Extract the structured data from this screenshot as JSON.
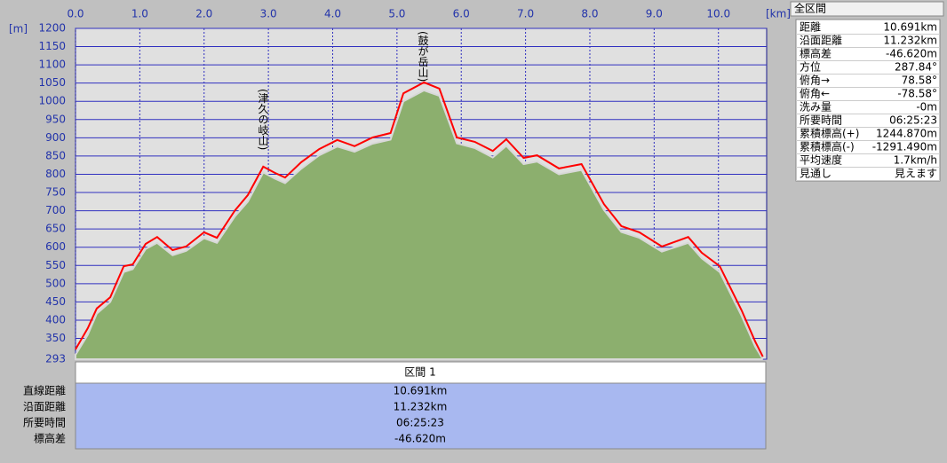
{
  "chart_data": {
    "type": "area",
    "x_label": "[km]",
    "y_label": "[m]",
    "annotations": [
      "(津久の岐山)",
      "(鼓が岳山)"
    ],
    "xlim": [
      0,
      10.75
    ],
    "ylim": [
      293,
      1200
    ],
    "xticks": [
      {
        "value": 0,
        "label": "0.0"
      },
      {
        "value": 1,
        "label": "1.0"
      },
      {
        "value": 2,
        "label": "2.0"
      },
      {
        "value": 3,
        "label": "3.0"
      },
      {
        "value": 4,
        "label": "4.0"
      },
      {
        "value": 5,
        "label": "5.0"
      },
      {
        "value": 6,
        "label": "6.0"
      },
      {
        "value": 7,
        "label": "7.0"
      },
      {
        "value": 8,
        "label": "8.0"
      },
      {
        "value": 9,
        "label": "9.0"
      },
      {
        "value": 10,
        "label": "10.0"
      }
    ],
    "yticks": [
      293,
      350,
      400,
      450,
      500,
      550,
      600,
      650,
      700,
      750,
      800,
      850,
      900,
      950,
      1000,
      1050,
      1100,
      1150,
      1200
    ],
    "grid": true,
    "series": [
      {
        "name": "track",
        "color": "#ff0000",
        "x": [
          0,
          0.19,
          0.33,
          0.54,
          0.75,
          0.89,
          1.09,
          1.27,
          1.51,
          1.72,
          2.0,
          2.2,
          2.48,
          2.68,
          2.92,
          3.1,
          3.26,
          3.51,
          3.79,
          4.07,
          4.34,
          4.62,
          4.9,
          5.1,
          5.42,
          5.66,
          5.93,
          6.21,
          6.49,
          6.7,
          6.97,
          7.18,
          7.52,
          7.87,
          8.22,
          8.49,
          8.77,
          9.12,
          9.53,
          9.74,
          10.02,
          10.36,
          10.57,
          10.691
        ],
        "values": [
          320,
          378,
          432,
          463,
          548,
          553,
          609,
          628,
          592,
          602,
          641,
          626,
          701,
          743,
          821,
          804,
          791,
          833,
          869,
          894,
          877,
          901,
          913,
          1022,
          1052,
          1035,
          901,
          889,
          864,
          896,
          845,
          852,
          816,
          828,
          718,
          658,
          641,
          602,
          628,
          585,
          548,
          427,
          342,
          300
        ]
      },
      {
        "name": "terrain",
        "color": "#8caf6e",
        "x": [
          0,
          0.19,
          0.33,
          0.54,
          0.75,
          0.89,
          1.09,
          1.27,
          1.51,
          1.72,
          2.0,
          2.2,
          2.48,
          2.68,
          2.92,
          3.1,
          3.26,
          3.51,
          3.79,
          4.07,
          4.34,
          4.62,
          4.9,
          5.1,
          5.42,
          5.66,
          5.93,
          6.21,
          6.49,
          6.7,
          6.97,
          7.18,
          7.52,
          7.87,
          8.22,
          8.49,
          8.77,
          9.12,
          9.53,
          9.74,
          10.02,
          10.36,
          10.57,
          10.691
        ],
        "values": [
          305,
          360,
          418,
          450,
          532,
          540,
          595,
          612,
          578,
          590,
          625,
          612,
          685,
          725,
          805,
          788,
          776,
          815,
          852,
          876,
          862,
          884,
          895,
          1000,
          1030,
          1015,
          885,
          872,
          846,
          878,
          828,
          835,
          800,
          812,
          702,
          642,
          626,
          588,
          612,
          570,
          532,
          412,
          328,
          293
        ]
      }
    ]
  },
  "section_table": {
    "title": "区間 1",
    "rows": [
      [
        "直線距離",
        "10.691km"
      ],
      [
        "沿面距離",
        "11.232km"
      ],
      [
        "所要時間",
        "06:25:23"
      ],
      [
        "標高差",
        "-46.620m"
      ]
    ]
  },
  "summary_panel": {
    "title": "全区間",
    "rows": [
      [
        "距離",
        "10.691km"
      ],
      [
        "沿面距離",
        "11.232km"
      ],
      [
        "標高差",
        "-46.620m"
      ],
      [
        "方位",
        "287.84°"
      ],
      [
        "俯角→",
        "78.58°"
      ],
      [
        "俯角←",
        "-78.58°"
      ],
      [
        "洗み量",
        "-0m"
      ],
      [
        "所要時間",
        "06:25:23"
      ],
      [
        "累積標高(+)",
        "1244.870m"
      ],
      [
        "累積標高(-)",
        "-1291.490m"
      ],
      [
        "平均速度",
        "1.7km/h"
      ],
      [
        "見通し",
        "見えます"
      ]
    ]
  }
}
